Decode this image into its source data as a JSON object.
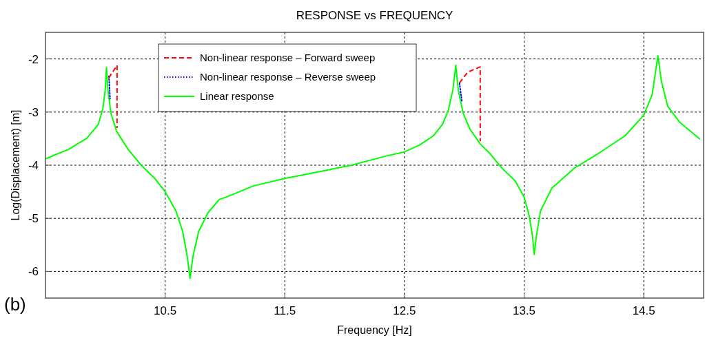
{
  "chart_data": {
    "type": "line",
    "title": "RESPONSE vs FREQUENCY",
    "xlabel": "Frequency [Hz]",
    "ylabel": "Log(Displacement) [m]",
    "annotations": [
      "(b)"
    ],
    "xlim": [
      9.5,
      15
    ],
    "ylim": [
      -6.5,
      -1.5
    ],
    "xticks": [
      10.5,
      11.5,
      12.5,
      13.5,
      14.5
    ],
    "yticks": [
      -2,
      -3,
      -4,
      -5,
      -6
    ],
    "grid": true,
    "legend": "top left",
    "series": [
      {
        "name": "Linear response",
        "color": "#00ff00",
        "line_style": "solid",
        "x": [
          9.5,
          9.694,
          9.847,
          9.942,
          9.98,
          9.999,
          10.01,
          10.022,
          10.047,
          10.094,
          10.19,
          10.3,
          10.418,
          10.5,
          10.59,
          10.647,
          10.685,
          10.708,
          10.732,
          10.78,
          10.856,
          10.95,
          11.009,
          11.237,
          11.5,
          11.77,
          12.056,
          12.34,
          12.5,
          12.627,
          12.74,
          12.818,
          12.866,
          12.904,
          12.929,
          12.95,
          12.99,
          13.047,
          13.133,
          13.218,
          13.294,
          13.313,
          13.427,
          13.5,
          13.542,
          13.57,
          13.584,
          13.603,
          13.637,
          13.732,
          13.923,
          14.113,
          14.342,
          14.5,
          14.57,
          14.618,
          14.647,
          14.7,
          14.8,
          14.97
        ],
        "values": [
          -3.88,
          -3.7,
          -3.49,
          -3.23,
          -2.93,
          -2.59,
          -2.16,
          -2.59,
          -3.02,
          -3.36,
          -3.7,
          -4.0,
          -4.26,
          -4.5,
          -4.86,
          -5.25,
          -5.72,
          -6.13,
          -5.72,
          -5.25,
          -4.9,
          -4.65,
          -4.6,
          -4.39,
          -4.25,
          -4.13,
          -4.0,
          -3.83,
          -3.75,
          -3.62,
          -3.45,
          -3.23,
          -2.97,
          -2.59,
          -2.12,
          -2.59,
          -3.02,
          -3.32,
          -3.6,
          -3.79,
          -4.0,
          -4.05,
          -4.3,
          -4.6,
          -4.95,
          -5.33,
          -5.68,
          -5.33,
          -4.86,
          -4.43,
          -4.05,
          -3.79,
          -3.45,
          -3.06,
          -2.67,
          -1.94,
          -2.42,
          -2.89,
          -3.19,
          -3.51
        ]
      },
      {
        "name": "Non-linear response – Reverse sweep",
        "color": "#0000ff",
        "line_style": "dotted",
        "x": [
          10.03,
          10.04,
          12.96,
          12.98
        ],
        "values": [
          -2.33,
          -2.75,
          -2.46,
          -2.8
        ]
      },
      {
        "name": "Non-linear response – Forward sweep",
        "color": "#ff0000",
        "line_style": "dashed",
        "x": [
          10.03,
          10.037,
          10.098,
          10.098,
          12.96,
          13.028,
          13.133,
          13.133
        ],
        "values": [
          -2.36,
          -2.33,
          -2.12,
          -3.3,
          -2.45,
          -2.25,
          -2.15,
          -3.55
        ]
      }
    ]
  }
}
